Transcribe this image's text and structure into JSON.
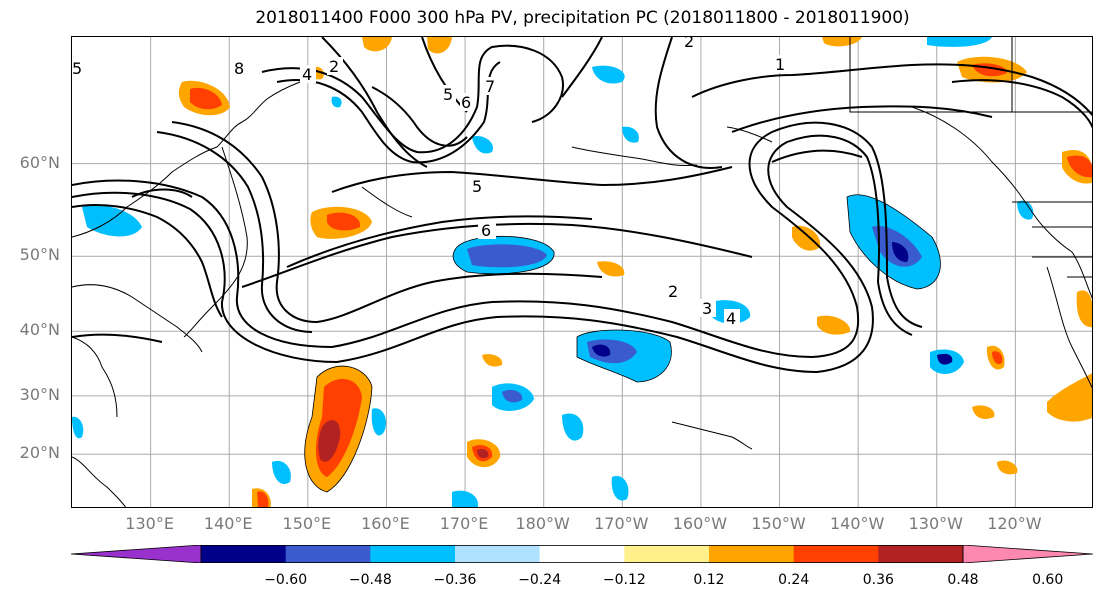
{
  "title": "2018011400 F000 300 hPa PV, precipitation PC (2018011800 - 2018011900)",
  "latitudes": [
    {
      "label": "60°N",
      "value": 60
    },
    {
      "label": "50°N",
      "value": 50
    },
    {
      "label": "40°N",
      "value": 40
    },
    {
      "label": "30°N",
      "value": 30
    },
    {
      "label": "20°N",
      "value": 20
    }
  ],
  "longitudes": [
    {
      "label": "130°E",
      "value": 130
    },
    {
      "label": "140°E",
      "value": 140
    },
    {
      "label": "150°E",
      "value": 150
    },
    {
      "label": "160°E",
      "value": 160
    },
    {
      "label": "170°E",
      "value": 170
    },
    {
      "label": "180°W",
      "value": 180
    },
    {
      "label": "170°W",
      "value": 190
    },
    {
      "label": "160°W",
      "value": 200
    },
    {
      "label": "150°W",
      "value": 210
    },
    {
      "label": "140°W",
      "value": 220
    },
    {
      "label": "130°W",
      "value": 230
    },
    {
      "label": "120°W",
      "value": 240
    }
  ],
  "extent": {
    "lon_min": 120,
    "lon_max": 250,
    "lat_min": 10,
    "lat_max": 70
  },
  "contour_labels": [
    "1",
    "2",
    "3",
    "4",
    "5",
    "6",
    "7",
    "8"
  ],
  "colorbar": {
    "colors": [
      "#9932cc",
      "#00008b",
      "#3a5bcd",
      "#00bfff",
      "#b0e2ff",
      "#ffffff",
      "#fff08c",
      "#ffa500",
      "#ff4000",
      "#b22222",
      "#ff88b0"
    ],
    "tick_labels": [
      "−0.60",
      "−0.48",
      "−0.36",
      "−0.24",
      "−0.12",
      "0.12",
      "0.24",
      "0.36",
      "0.48",
      "0.60"
    ]
  }
}
